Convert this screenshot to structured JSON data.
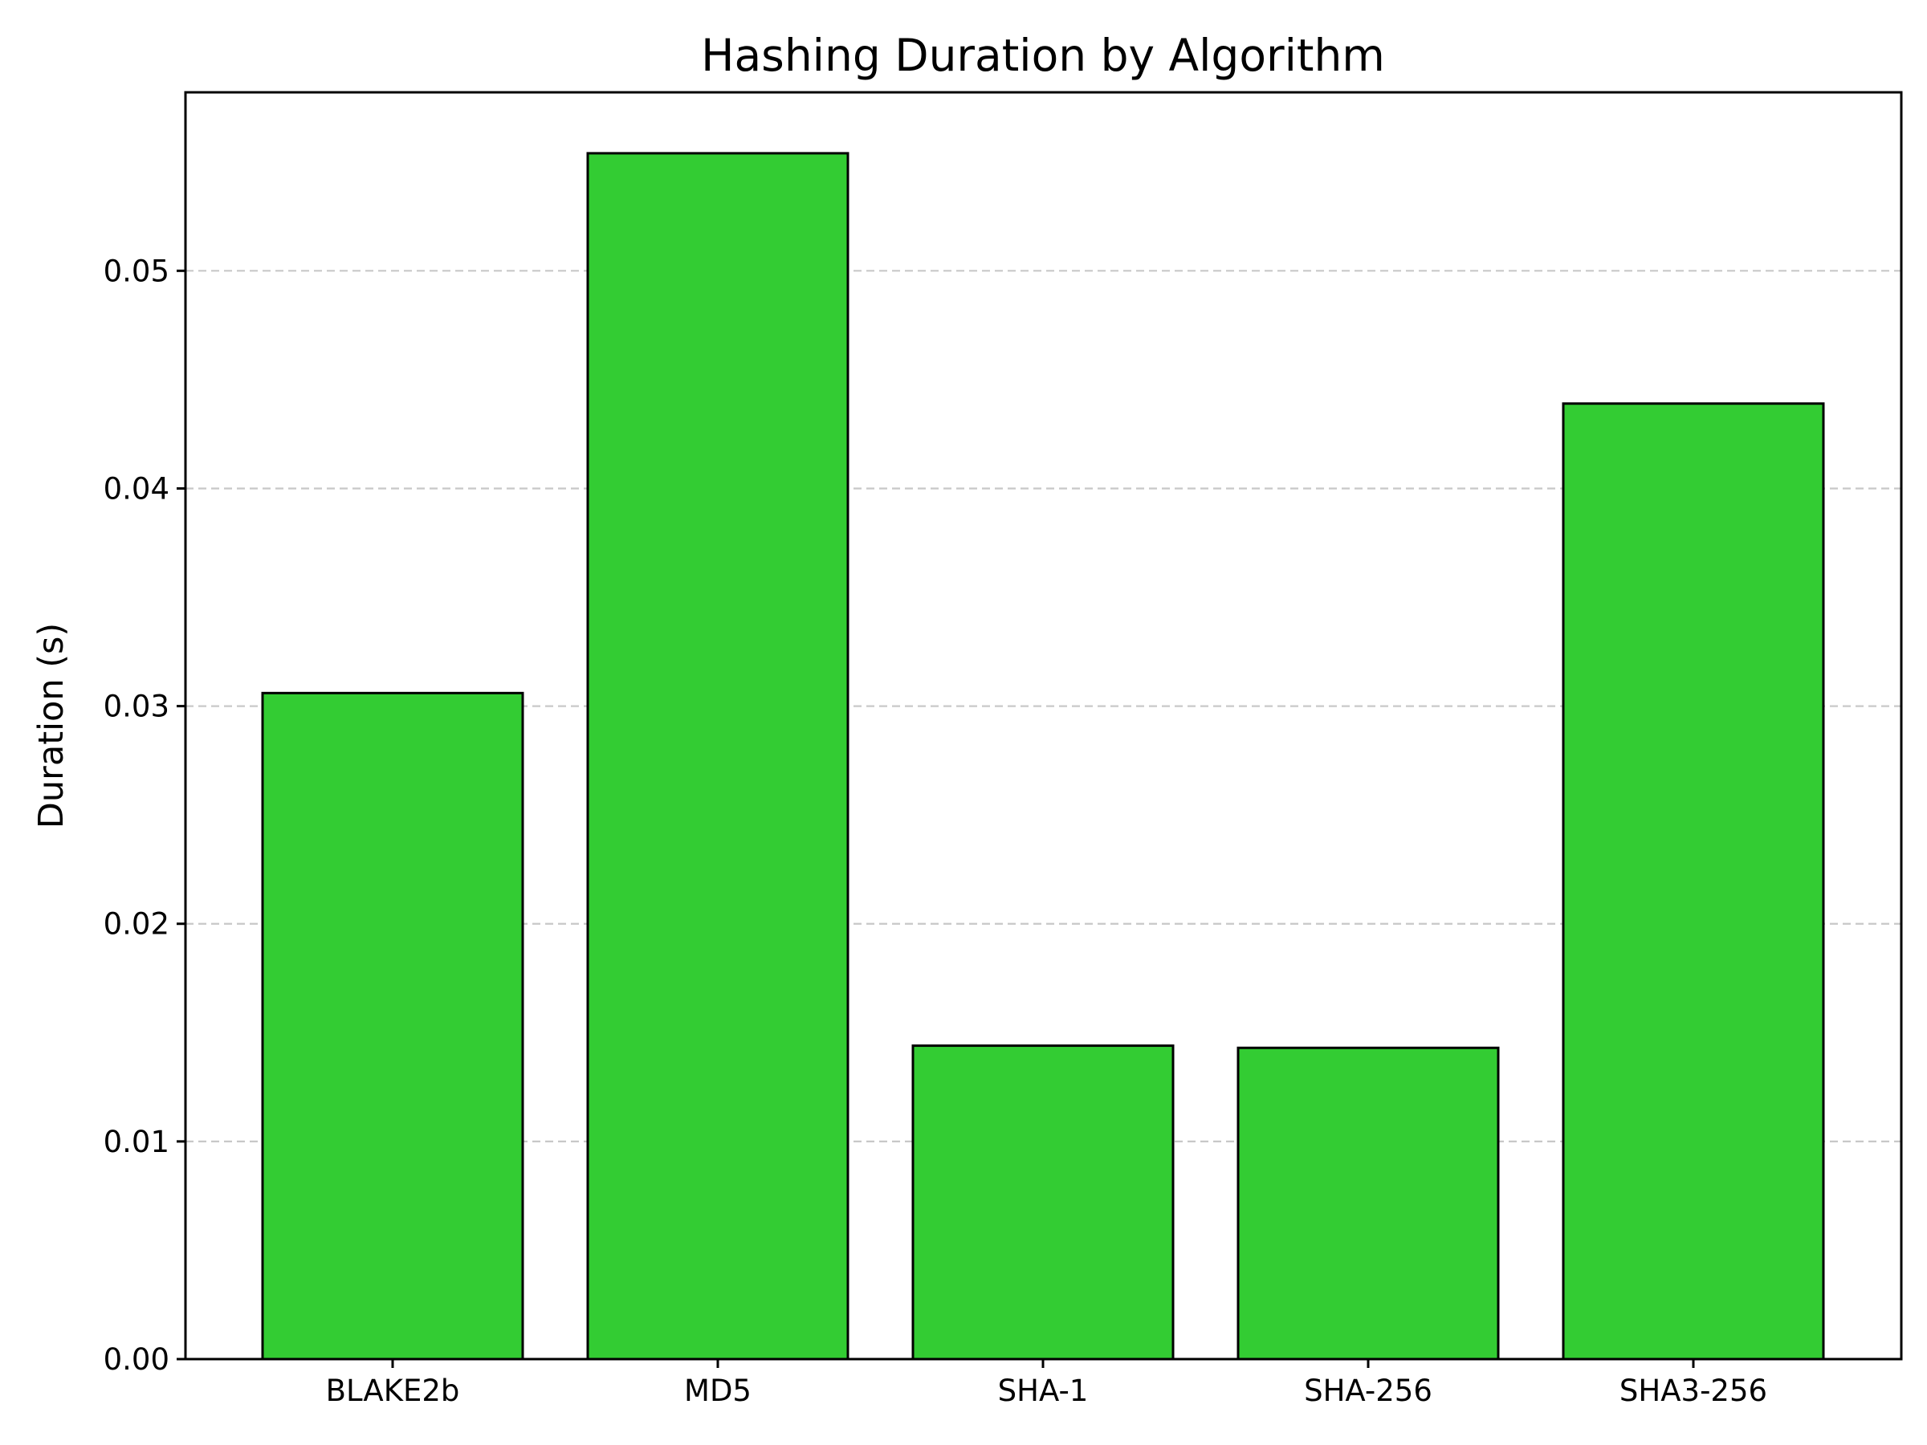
{
  "chart_data": {
    "type": "bar",
    "title": "Hashing Duration by Algorithm",
    "xlabel": "",
    "ylabel": "Duration (s)",
    "categories": [
      "BLAKE2b",
      "MD5",
      "SHA-1",
      "SHA-256",
      "SHA3-256"
    ],
    "values": [
      0.0306,
      0.0554,
      0.0144,
      0.0143,
      0.0439
    ],
    "ylim": [
      0,
      0.0582
    ],
    "yticks": [
      "0.00",
      "0.01",
      "0.02",
      "0.03",
      "0.04",
      "0.05"
    ],
    "grid": "y-dashed",
    "legend": "none",
    "colors": {
      "bar_fill": "#33cc33",
      "bar_edge": "#000000",
      "grid": "#c8c8c8",
      "axis": "#000000"
    }
  }
}
